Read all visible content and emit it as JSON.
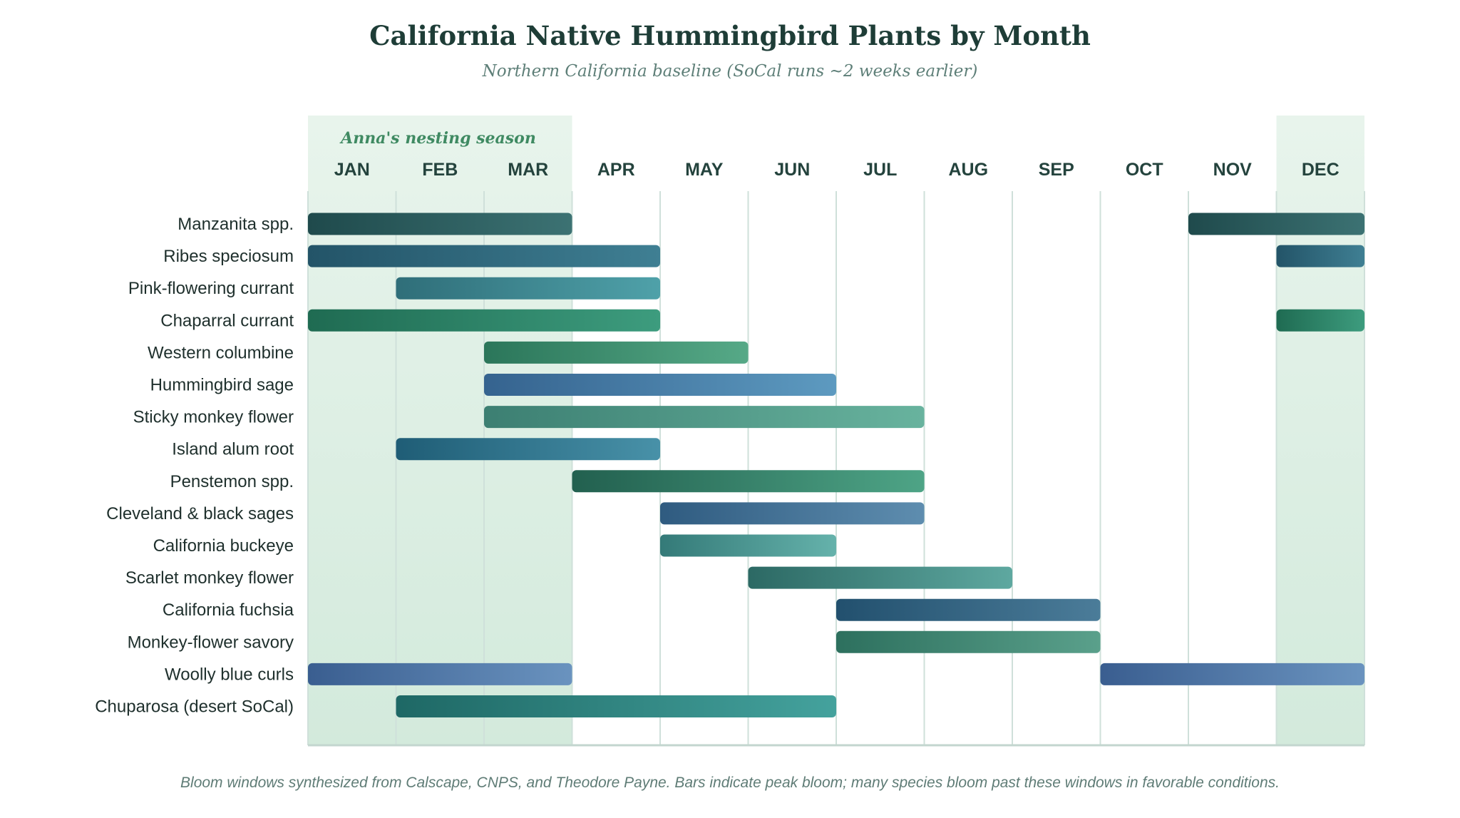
{
  "chart_data": {
    "type": "gantt",
    "title": "California Native Hummingbird Plants by Month",
    "subtitle": "Northern California baseline (SoCal runs ~2 weeks earlier)",
    "months": [
      "JAN",
      "FEB",
      "MAR",
      "APR",
      "MAY",
      "JUN",
      "JUL",
      "AUG",
      "SEP",
      "OCT",
      "NOV",
      "DEC"
    ],
    "highlight": {
      "label": "Anna's nesting season",
      "months": [
        "JAN",
        "FEB",
        "MAR",
        "DEC"
      ],
      "color": "#d3eadc"
    },
    "plants": [
      {
        "name": "Manzanita spp.",
        "bloom": [
          [
            "JAN",
            "MAR"
          ],
          [
            "NOV",
            "DEC"
          ]
        ],
        "colors": [
          "#1f4a4c",
          "#3c7273"
        ]
      },
      {
        "name": "Ribes speciosum",
        "bloom": [
          [
            "JAN",
            "APR"
          ],
          [
            "DEC",
            "DEC"
          ]
        ],
        "colors": [
          "#235468",
          "#3f7f93"
        ]
      },
      {
        "name": "Pink-flowering currant",
        "bloom": [
          [
            "FEB",
            "APR"
          ]
        ],
        "colors": [
          "#2f6e79",
          "#4fa1a9"
        ]
      },
      {
        "name": "Chaparral currant",
        "bloom": [
          [
            "JAN",
            "APR"
          ],
          [
            "DEC",
            "DEC"
          ]
        ],
        "colors": [
          "#1f6b52",
          "#3d9c7e"
        ]
      },
      {
        "name": "Western columbine",
        "bloom": [
          [
            "MAR",
            "MAY"
          ]
        ],
        "colors": [
          "#2b765a",
          "#56a987"
        ]
      },
      {
        "name": "Hummingbird sage",
        "bloom": [
          [
            "MAR",
            "JUN"
          ]
        ],
        "colors": [
          "#35638f",
          "#5d9ac0"
        ]
      },
      {
        "name": "Sticky monkey flower",
        "bloom": [
          [
            "MAR",
            "JUL"
          ]
        ],
        "colors": [
          "#3c7f72",
          "#68b39e"
        ]
      },
      {
        "name": "Island alum root",
        "bloom": [
          [
            "FEB",
            "APR"
          ]
        ],
        "colors": [
          "#1f5d76",
          "#4891a8"
        ]
      },
      {
        "name": "Penstemon spp.",
        "bloom": [
          [
            "APR",
            "JUL"
          ]
        ],
        "colors": [
          "#22604f",
          "#4ea486"
        ]
      },
      {
        "name": "Cleveland & black sages",
        "bloom": [
          [
            "MAY",
            "JUL"
          ]
        ],
        "colors": [
          "#2f5b80",
          "#5e8daf"
        ]
      },
      {
        "name": "California buckeye",
        "bloom": [
          [
            "MAY",
            "JUN"
          ]
        ],
        "colors": [
          "#347a78",
          "#65b2ab"
        ]
      },
      {
        "name": "Scarlet monkey flower",
        "bloom": [
          [
            "JUN",
            "AUG"
          ]
        ],
        "colors": [
          "#2c6964",
          "#5ea8a0"
        ]
      },
      {
        "name": "California fuchsia",
        "bloom": [
          [
            "JUL",
            "SEP"
          ]
        ],
        "colors": [
          "#22506e",
          "#4b7c99"
        ]
      },
      {
        "name": "Monkey-flower savory",
        "bloom": [
          [
            "JUL",
            "SEP"
          ]
        ],
        "colors": [
          "#2d705e",
          "#5aa08b"
        ]
      },
      {
        "name": "Woolly blue curls",
        "bloom": [
          [
            "JAN",
            "MAR"
          ],
          [
            "OCT",
            "DEC"
          ]
        ],
        "colors": [
          "#3a5e90",
          "#6a93bf"
        ]
      },
      {
        "name": "Chuparosa (desert SoCal)",
        "bloom": [
          [
            "FEB",
            "JUN"
          ]
        ],
        "colors": [
          "#1e6865",
          "#44a29d"
        ]
      }
    ],
    "footnote": "Bloom windows synthesized from Calscape, CNPS, and Theodore Payne. Bars indicate peak bloom; many species bloom past these windows in favorable conditions."
  }
}
